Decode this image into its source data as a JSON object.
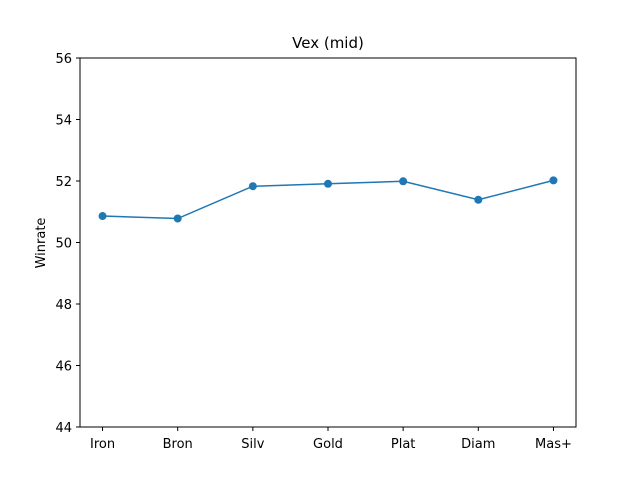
{
  "chart_data": {
    "type": "line",
    "title": "Vex (mid)",
    "xlabel": "",
    "ylabel": "Winrate",
    "categories": [
      "Iron",
      "Bron",
      "Silv",
      "Gold",
      "Plat",
      "Diam",
      "Mas+"
    ],
    "series": [
      {
        "values": [
          50.86,
          50.78,
          51.83,
          51.91,
          51.99,
          51.39,
          52.02
        ],
        "color": "#1f77b4",
        "marker": "circle"
      }
    ],
    "ylim": [
      44,
      56
    ],
    "yticks": [
      44,
      46,
      48,
      50,
      52,
      54,
      56
    ],
    "grid": false,
    "legend": "none"
  }
}
